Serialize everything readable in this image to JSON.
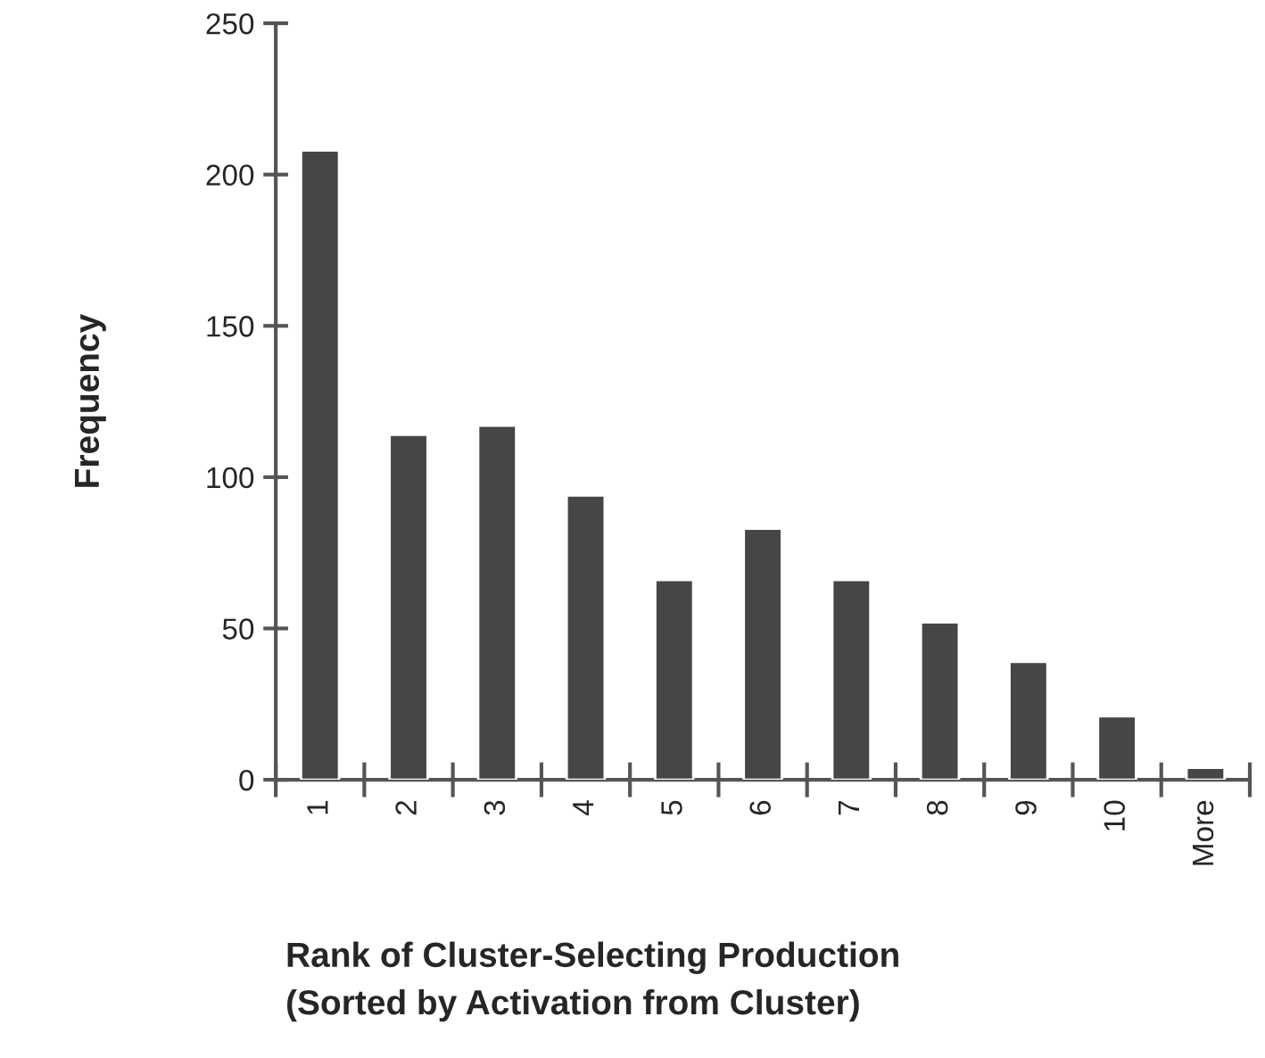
{
  "chart_data": {
    "type": "bar",
    "xlabel": "Rank of Cluster-Selecting Production\n(Sorted by Activation from Cluster)",
    "ylabel": "Frequency",
    "categories": [
      "1",
      "2",
      "3",
      "4",
      "5",
      "6",
      "7",
      "8",
      "9",
      "10",
      "More"
    ],
    "values": [
      208,
      114,
      117,
      94,
      66,
      83,
      66,
      52,
      39,
      21,
      4
    ],
    "color": "#464646",
    "ylim": [
      0,
      250
    ],
    "yticks": [
      0,
      50,
      100,
      150,
      200,
      250
    ],
    "grid": false,
    "legend": false
  }
}
